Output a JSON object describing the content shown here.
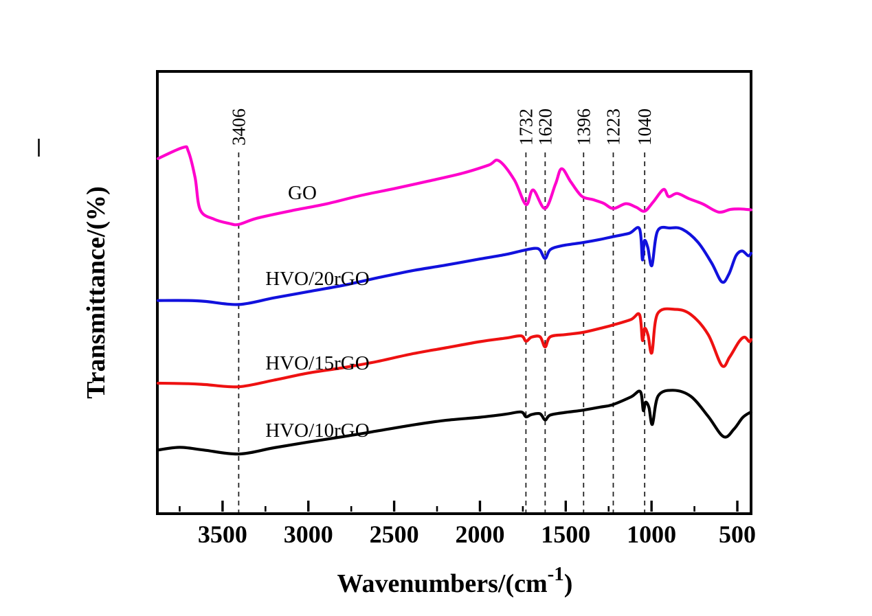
{
  "axes": {
    "x_label_main": "Wavenumbers/(cm",
    "x_label_sup": "-1",
    "x_label_end": ")",
    "y_label": "Transmittance/(%)"
  },
  "chart_data": {
    "type": "line",
    "title": "",
    "xlabel": "Wavenumbers/(cm-1)",
    "ylabel": "Transmittance/(%)",
    "x_axis_reversed": true,
    "xlim": [
      3880,
      420
    ],
    "ylim_note": "y values are transmittance in arbitrary offset units, 0-100 of plot height; no y ticks shown",
    "grid": false,
    "legend_position": "inline-curve-labels",
    "x_major_ticks": [
      3500,
      3000,
      2500,
      2000,
      1500,
      1000,
      500
    ],
    "x_minor_ticks": [
      3750,
      3250,
      2750,
      2250,
      1750,
      1250,
      750
    ],
    "peak_annotations": [
      {
        "wavenumber": 3406,
        "label": "3406"
      },
      {
        "wavenumber": 1732,
        "label": "1732"
      },
      {
        "wavenumber": 1620,
        "label": "1620"
      },
      {
        "wavenumber": 1396,
        "label": "1396"
      },
      {
        "wavenumber": 1223,
        "label": "1223"
      },
      {
        "wavenumber": 1040,
        "label": "1040"
      }
    ],
    "annotation_style": {
      "color": "#222222",
      "dash": "7 6"
    },
    "series": [
      {
        "name": "GO",
        "color": "#ff00cc",
        "label_anchor": {
          "x": 3035,
          "y": 72.5
        },
        "points": [
          [
            3876,
            80.3
          ],
          [
            3731,
            82.8
          ],
          [
            3700,
            82.0
          ],
          [
            3660,
            76.0
          ],
          [
            3630,
            68.7
          ],
          [
            3550,
            66.6
          ],
          [
            3460,
            65.6
          ],
          [
            3406,
            65.4
          ],
          [
            3300,
            66.8
          ],
          [
            3100,
            68.5
          ],
          [
            2900,
            70.0
          ],
          [
            2700,
            71.9
          ],
          [
            2500,
            73.5
          ],
          [
            2300,
            75.2
          ],
          [
            2100,
            77.0
          ],
          [
            1950,
            78.8
          ],
          [
            1890,
            79.8
          ],
          [
            1800,
            75.5
          ],
          [
            1732,
            69.9
          ],
          [
            1690,
            73.2
          ],
          [
            1620,
            69.0
          ],
          [
            1560,
            74.5
          ],
          [
            1524,
            78.0
          ],
          [
            1470,
            75.0
          ],
          [
            1407,
            71.8
          ],
          [
            1340,
            71.0
          ],
          [
            1280,
            70.2
          ],
          [
            1223,
            69.0
          ],
          [
            1150,
            70.1
          ],
          [
            1090,
            69.3
          ],
          [
            1040,
            68.4
          ],
          [
            990,
            70.5
          ],
          [
            930,
            73.3
          ],
          [
            900,
            71.7
          ],
          [
            850,
            72.4
          ],
          [
            780,
            71.2
          ],
          [
            700,
            70.0
          ],
          [
            610,
            68.2
          ],
          [
            540,
            68.8
          ],
          [
            480,
            68.9
          ],
          [
            420,
            68.7
          ]
        ]
      },
      {
        "name": "HVO/20rGO",
        "color": "#1111dd",
        "label_anchor": {
          "x": 2947,
          "y": 53.1
        },
        "points": [
          [
            3876,
            48.2
          ],
          [
            3700,
            48.2
          ],
          [
            3600,
            48.0
          ],
          [
            3406,
            47.3
          ],
          [
            3200,
            48.8
          ],
          [
            3000,
            50.2
          ],
          [
            2800,
            51.6
          ],
          [
            2600,
            53.3
          ],
          [
            2400,
            54.9
          ],
          [
            2200,
            56.2
          ],
          [
            2000,
            57.6
          ],
          [
            1850,
            58.6
          ],
          [
            1750,
            59.5
          ],
          [
            1680,
            60.0
          ],
          [
            1650,
            59.6
          ],
          [
            1620,
            57.7
          ],
          [
            1590,
            59.7
          ],
          [
            1520,
            60.6
          ],
          [
            1400,
            61.3
          ],
          [
            1300,
            62.0
          ],
          [
            1230,
            62.6
          ],
          [
            1130,
            63.4
          ],
          [
            1070,
            64.4
          ],
          [
            1053,
            57.4
          ],
          [
            1042,
            61.7
          ],
          [
            1022,
            60.2
          ],
          [
            998,
            56.1
          ],
          [
            965,
            63.9
          ],
          [
            890,
            64.6
          ],
          [
            820,
            64.3
          ],
          [
            730,
            61.4
          ],
          [
            650,
            56.7
          ],
          [
            590,
            52.4
          ],
          [
            550,
            54.1
          ],
          [
            508,
            58.3
          ],
          [
            472,
            59.4
          ],
          [
            436,
            58.3
          ],
          [
            420,
            58.9
          ]
        ]
      },
      {
        "name": "HVO/15rGO",
        "color": "#ee1111",
        "label_anchor": {
          "x": 2947,
          "y": 34.0
        },
        "points": [
          [
            3876,
            29.5
          ],
          [
            3700,
            29.4
          ],
          [
            3600,
            29.2
          ],
          [
            3406,
            28.7
          ],
          [
            3200,
            30.2
          ],
          [
            3000,
            31.8
          ],
          [
            2800,
            33.0
          ],
          [
            2600,
            34.4
          ],
          [
            2400,
            36.1
          ],
          [
            2200,
            37.5
          ],
          [
            2000,
            38.9
          ],
          [
            1850,
            39.7
          ],
          [
            1760,
            40.2
          ],
          [
            1732,
            39.0
          ],
          [
            1700,
            39.9
          ],
          [
            1650,
            40.0
          ],
          [
            1620,
            37.7
          ],
          [
            1590,
            40.0
          ],
          [
            1500,
            40.5
          ],
          [
            1400,
            41.0
          ],
          [
            1300,
            41.9
          ],
          [
            1230,
            42.6
          ],
          [
            1120,
            43.9
          ],
          [
            1070,
            45.0
          ],
          [
            1053,
            39.2
          ],
          [
            1040,
            41.9
          ],
          [
            1020,
            40.3
          ],
          [
            998,
            36.4
          ],
          [
            965,
            45.2
          ],
          [
            860,
            46.2
          ],
          [
            770,
            45.0
          ],
          [
            670,
            40.5
          ],
          [
            590,
            33.5
          ],
          [
            545,
            35.4
          ],
          [
            490,
            38.9
          ],
          [
            458,
            39.9
          ],
          [
            430,
            38.9
          ],
          [
            420,
            39.4
          ]
        ]
      },
      {
        "name": "HVO/10rGO",
        "color": "#000000",
        "label_anchor": {
          "x": 2947,
          "y": 18.8
        },
        "points": [
          [
            3876,
            14.4
          ],
          [
            3750,
            15.0
          ],
          [
            3610,
            14.4
          ],
          [
            3406,
            13.5
          ],
          [
            3200,
            14.9
          ],
          [
            3000,
            16.2
          ],
          [
            2800,
            17.4
          ],
          [
            2600,
            18.7
          ],
          [
            2400,
            20.0
          ],
          [
            2200,
            21.1
          ],
          [
            2000,
            21.8
          ],
          [
            1850,
            22.5
          ],
          [
            1760,
            23.0
          ],
          [
            1732,
            21.9
          ],
          [
            1700,
            22.4
          ],
          [
            1650,
            22.6
          ],
          [
            1620,
            21.2
          ],
          [
            1590,
            22.3
          ],
          [
            1500,
            22.9
          ],
          [
            1400,
            23.4
          ],
          [
            1300,
            24.1
          ],
          [
            1230,
            24.6
          ],
          [
            1120,
            26.4
          ],
          [
            1065,
            27.6
          ],
          [
            1048,
            23.3
          ],
          [
            1035,
            25.2
          ],
          [
            1015,
            24.0
          ],
          [
            995,
            20.2
          ],
          [
            962,
            26.6
          ],
          [
            875,
            27.9
          ],
          [
            770,
            26.5
          ],
          [
            670,
            22.0
          ],
          [
            580,
            17.4
          ],
          [
            520,
            19.1
          ],
          [
            470,
            21.7
          ],
          [
            430,
            22.8
          ],
          [
            420,
            22.9
          ]
        ]
      }
    ]
  }
}
